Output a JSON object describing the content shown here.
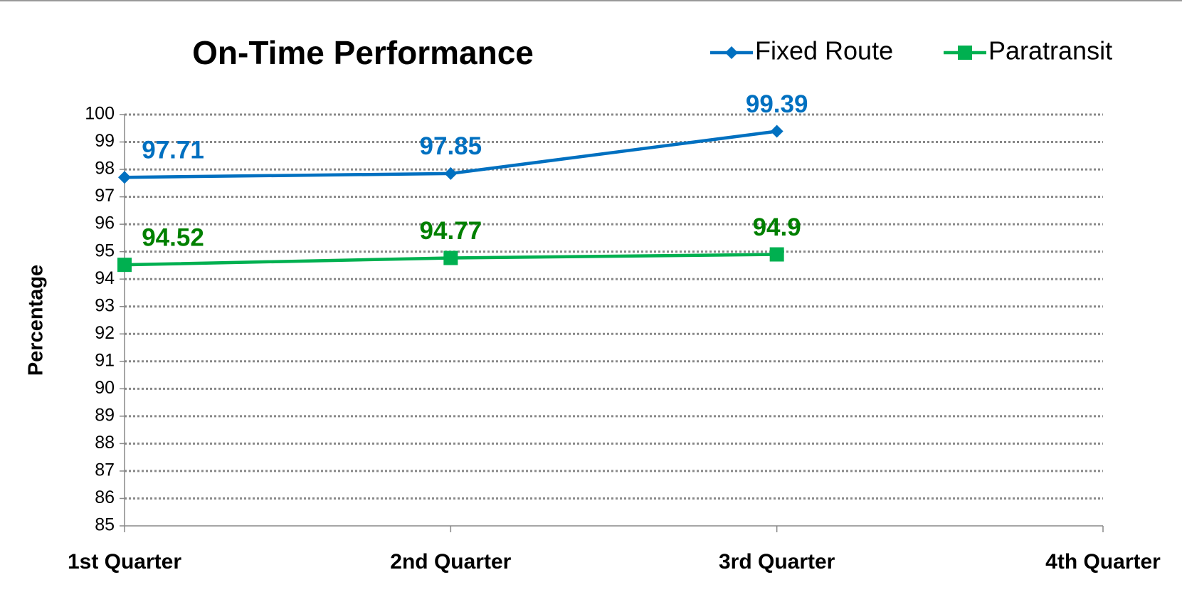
{
  "chart_data": {
    "type": "line",
    "title": "On-Time Performance",
    "y_label": "Percentage",
    "categories": [
      "1st Quarter",
      "2nd Quarter",
      "3rd Quarter",
      "4th Quarter"
    ],
    "series": [
      {
        "name": "Fixed Route",
        "color": "#0070c0",
        "marker": "diamond",
        "values": [
          97.71,
          97.85,
          99.39,
          null
        ]
      },
      {
        "name": "Paratransit",
        "color": "#00b050",
        "label_color": "#008000",
        "marker": "square",
        "values": [
          94.52,
          94.77,
          94.9,
          null
        ]
      }
    ],
    "ylim": [
      85,
      100
    ],
    "yticks": [
      85,
      86,
      87,
      88,
      89,
      90,
      91,
      92,
      93,
      94,
      95,
      96,
      97,
      98,
      99,
      100
    ],
    "grid": true,
    "legend": "top-right"
  }
}
